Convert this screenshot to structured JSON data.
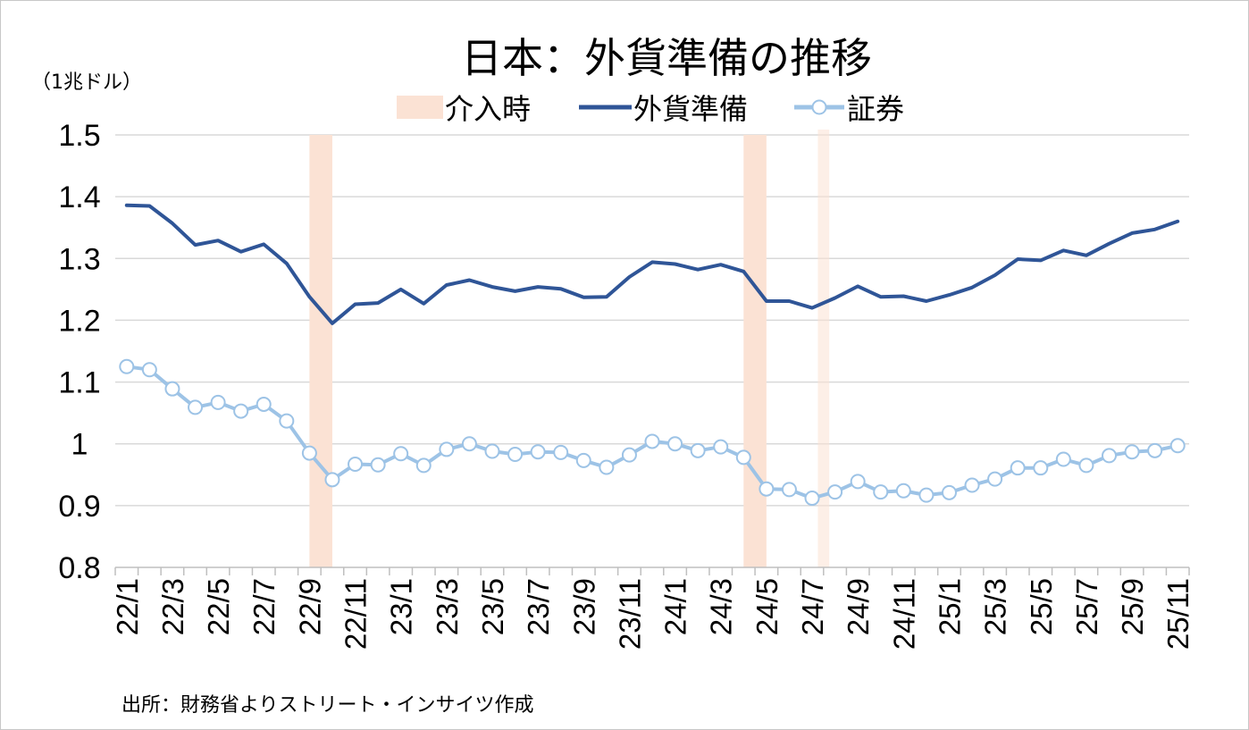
{
  "chart_data": {
    "type": "line",
    "title": "日本：外貨準備の推移",
    "unit_label": "（1兆ドル）",
    "source": "出所：財務省よりストリート・インサイツ作成",
    "ylim": [
      0.8,
      1.5
    ],
    "y_ticks": [
      "1.5",
      "1.4",
      "1.3",
      "1.2",
      "1.1",
      "1",
      "0.9",
      "0.8"
    ],
    "y_tick_values": [
      1.5,
      1.4,
      1.3,
      1.2,
      1.1,
      1.0,
      0.9,
      0.8
    ],
    "grid": true,
    "legend_position": "top",
    "x": [
      "22/1",
      "22/2",
      "22/3",
      "22/4",
      "22/5",
      "22/6",
      "22/7",
      "22/8",
      "22/9",
      "22/10",
      "22/11",
      "22/12",
      "23/1",
      "23/2",
      "23/3",
      "23/4",
      "23/5",
      "23/6",
      "23/7",
      "23/8",
      "23/9",
      "23/10",
      "23/11",
      "23/12",
      "24/1",
      "24/2",
      "24/3",
      "24/4",
      "24/5",
      "24/6",
      "24/7",
      "24/8",
      "24/9",
      "24/10",
      "24/11",
      "24/12",
      "25/1",
      "25/2",
      "25/3",
      "25/4",
      "25/5",
      "25/6",
      "25/7",
      "25/8",
      "25/9",
      "25/10",
      "25/11"
    ],
    "x_tick_labels": [
      "22/1",
      "22/3",
      "22/5",
      "22/7",
      "22/9",
      "22/11",
      "23/1",
      "23/3",
      "23/5",
      "23/7",
      "23/9",
      "23/11",
      "24/1",
      "24/3",
      "24/5",
      "24/7",
      "24/9",
      "24/11",
      "25/1",
      "25/3",
      "25/5",
      "25/7",
      "25/9",
      "25/11"
    ],
    "intervention": {
      "name": "介入時",
      "color": "#fbe2d4",
      "periods": [
        {
          "at": "22/9",
          "opacity": 1.0
        },
        {
          "at": "24/4",
          "opacity": 1.0
        },
        {
          "at": "24/7",
          "opacity": 0.55
        }
      ]
    },
    "series": [
      {
        "name": "外貨準備",
        "color": "#2f5597",
        "marker": false,
        "values": [
          1.386,
          1.385,
          1.357,
          1.322,
          1.329,
          1.311,
          1.323,
          1.292,
          1.238,
          1.195,
          1.226,
          1.228,
          1.25,
          1.227,
          1.257,
          1.265,
          1.254,
          1.247,
          1.254,
          1.251,
          1.237,
          1.238,
          1.27,
          1.294,
          1.291,
          1.282,
          1.29,
          1.279,
          1.231,
          1.231,
          1.22,
          1.236,
          1.255,
          1.238,
          1.239,
          1.231,
          1.241,
          1.253,
          1.273,
          1.299,
          1.297,
          1.313,
          1.305,
          1.324,
          1.341,
          1.347,
          1.36
        ]
      },
      {
        "name": "証券",
        "color": "#9dc3e6",
        "marker": true,
        "values": [
          1.125,
          1.12,
          1.089,
          1.059,
          1.067,
          1.053,
          1.064,
          1.037,
          0.985,
          0.942,
          0.967,
          0.966,
          0.984,
          0.965,
          0.991,
          1.0,
          0.988,
          0.983,
          0.987,
          0.986,
          0.973,
          0.962,
          0.982,
          1.004,
          1.0,
          0.989,
          0.995,
          0.978,
          0.927,
          0.926,
          0.912,
          0.922,
          0.939,
          0.922,
          0.924,
          0.917,
          0.921,
          0.933,
          0.943,
          0.961,
          0.961,
          0.975,
          0.965,
          0.981,
          0.987,
          0.989,
          0.997
        ]
      }
    ]
  }
}
